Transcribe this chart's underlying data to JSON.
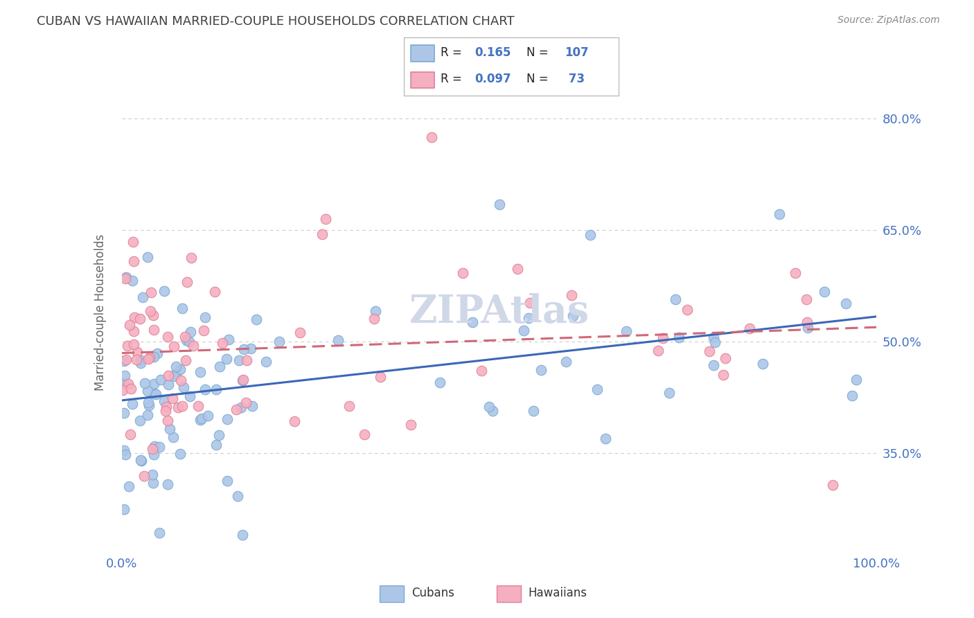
{
  "title": "CUBAN VS HAWAIIAN MARRIED-COUPLE HOUSEHOLDS CORRELATION CHART",
  "source": "Source: ZipAtlas.com",
  "ylabel": "Married-couple Households",
  "ytick_labels": [
    "35.0%",
    "50.0%",
    "65.0%",
    "80.0%"
  ],
  "ytick_values": [
    0.35,
    0.5,
    0.65,
    0.8
  ],
  "xlim": [
    0.0,
    1.0
  ],
  "ylim": [
    0.22,
    0.86
  ],
  "cubans_color": "#adc6e8",
  "hawaiians_color": "#f5afc0",
  "cubans_edge_color": "#7aaad0",
  "hawaiians_edge_color": "#e08098",
  "cubans_line_color": "#3a67b8",
  "hawaiians_line_color": "#d06878",
  "axis_color": "#4472c4",
  "grid_color": "#cccccc",
  "title_color": "#404040",
  "source_color": "#888888",
  "background_color": "#ffffff",
  "watermark_color": "#d0d8e8",
  "cubans_R": 0.165,
  "cubans_N": 107,
  "hawaiians_R": 0.097,
  "hawaiians_N": 73,
  "cubans_intercept": 0.445,
  "cubans_slope": 0.058,
  "hawaiians_intercept": 0.487,
  "hawaiians_slope": 0.048
}
